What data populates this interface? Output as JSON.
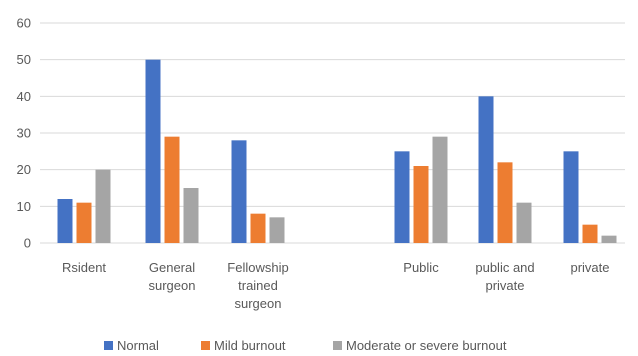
{
  "chart_data": {
    "type": "bar",
    "title": "",
    "xlabel": "",
    "ylabel": "",
    "ylim": [
      0,
      60
    ],
    "yticks": [
      0,
      10,
      20,
      30,
      40,
      50,
      60
    ],
    "grid": true,
    "legend_position": "bottom",
    "categories": [
      [
        "Rsident"
      ],
      [
        "General",
        "surgeon"
      ],
      [
        "Fellowship",
        "trained",
        "surgeon"
      ],
      [
        "Public"
      ],
      [
        "public and",
        "private"
      ],
      [
        "private"
      ]
    ],
    "series": [
      {
        "name": "Normal",
        "color": "#4472c4",
        "values": [
          12,
          50,
          28,
          25,
          40,
          25
        ]
      },
      {
        "name": "Mild burnout",
        "color": "#ed7d31",
        "values": [
          11,
          29,
          8,
          21,
          22,
          5
        ]
      },
      {
        "name": "Moderate or severe burnout",
        "color": "#a5a5a5",
        "values": [
          20,
          15,
          7,
          29,
          11,
          2
        ]
      }
    ]
  }
}
